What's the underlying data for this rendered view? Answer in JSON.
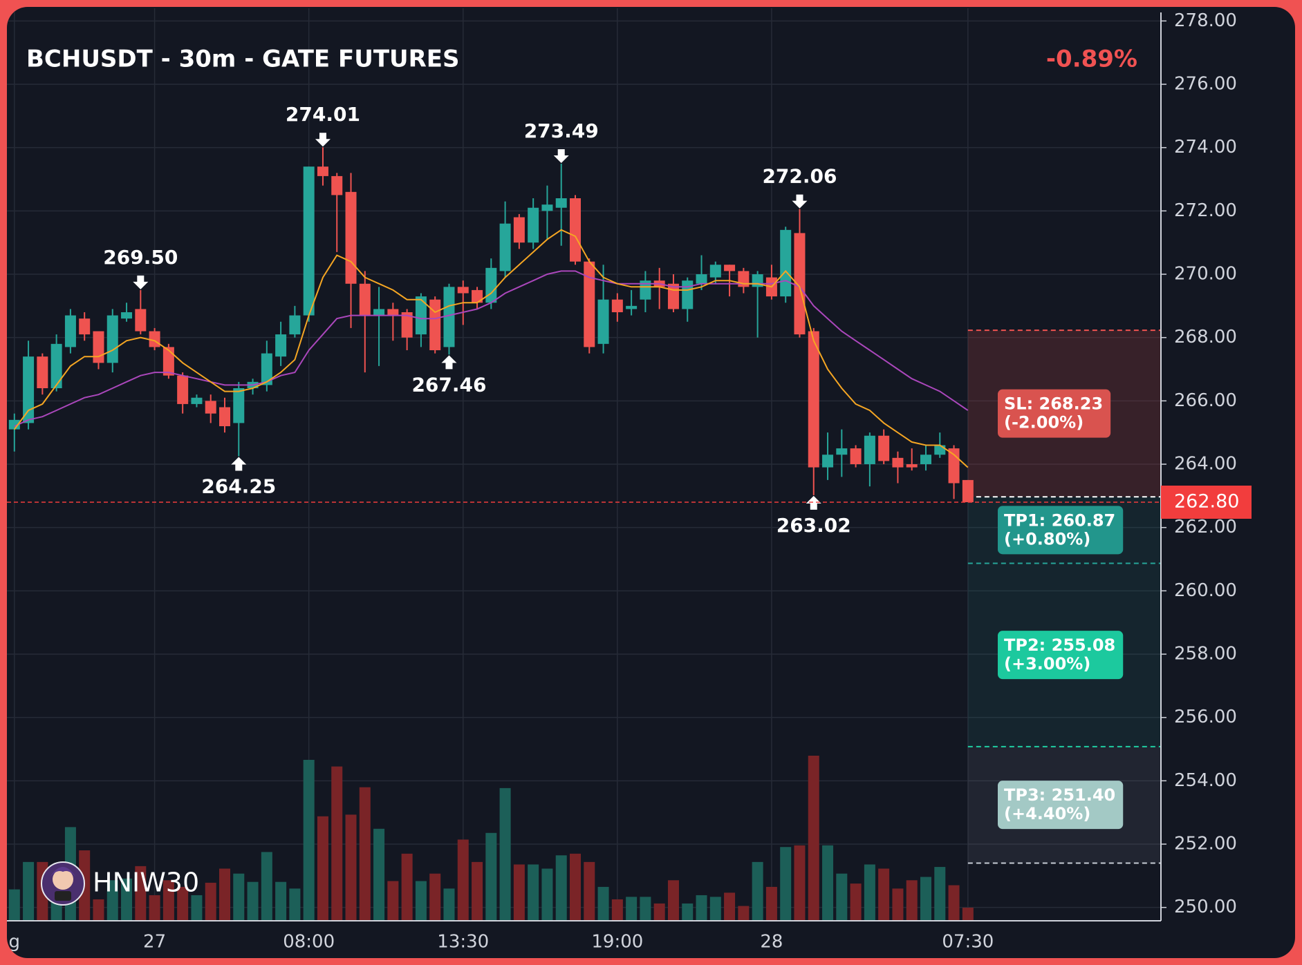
{
  "chart_data": {
    "type": "candlestick",
    "title": "BCHUSDT - 30m - GATE FUTURES",
    "change": "-0.89%",
    "watermark": "HNIW30",
    "categories": [
      "g",
      null,
      null,
      null,
      null,
      null,
      null,
      null,
      null,
      null,
      "27",
      null,
      null,
      null,
      null,
      null,
      null,
      null,
      null,
      null,
      null,
      "08:00",
      null,
      null,
      null,
      null,
      null,
      null,
      null,
      null,
      null,
      null,
      "13:30",
      null,
      null,
      null,
      null,
      null,
      null,
      null,
      null,
      null,
      null,
      "19:00",
      null,
      null,
      null,
      null,
      null,
      null,
      null,
      null,
      null,
      null,
      "28",
      null,
      null,
      null,
      null,
      null,
      null,
      null,
      null,
      null,
      null,
      null,
      null,
      null,
      "07:30"
    ],
    "open": [
      265.1,
      265.3,
      267.4,
      266.4,
      267.7,
      268.6,
      268.2,
      267.2,
      268.6,
      268.9,
      268.2,
      267.7,
      266.8,
      265.9,
      266.0,
      265.8,
      265.3,
      266.4,
      266.5,
      267.4,
      268.1,
      268.7,
      273.4,
      273.1,
      272.6,
      269.7,
      268.7,
      268.9,
      268.8,
      268.1,
      269.2,
      267.7,
      269.6,
      269.5,
      269.1,
      270.1,
      271.8,
      271.0,
      272.0,
      272.1,
      272.4,
      270.4,
      267.8,
      269.2,
      268.9,
      269.2,
      269.8,
      269.7,
      268.9,
      269.7,
      269.9,
      270.3,
      270.1,
      269.6,
      269.9,
      269.3,
      271.3,
      268.2,
      263.9,
      264.3,
      264.5,
      264.0,
      264.9,
      264.2,
      264.0,
      264.0,
      264.3,
      264.5,
      263.5
    ],
    "high": [
      265.6,
      267.9,
      267.5,
      268.1,
      268.9,
      268.8,
      268.2,
      268.9,
      269.1,
      269.5,
      268.3,
      267.8,
      266.9,
      266.2,
      266.2,
      266.1,
      266.6,
      266.7,
      267.9,
      268.5,
      269.0,
      273.4,
      274.01,
      273.2,
      273.2,
      270.1,
      269.6,
      269.1,
      268.9,
      269.4,
      269.3,
      269.7,
      269.8,
      269.6,
      270.5,
      272.3,
      271.9,
      272.4,
      272.8,
      273.49,
      272.5,
      270.5,
      270.3,
      269.4,
      269.5,
      270.1,
      270.2,
      270.0,
      269.9,
      270.6,
      270.4,
      270.3,
      270.2,
      270.1,
      270.3,
      271.5,
      272.06,
      268.3,
      265.0,
      265.1,
      264.6,
      265.0,
      265.1,
      264.4,
      264.5,
      264.6,
      265.0,
      264.6,
      263.5
    ],
    "low": [
      264.4,
      265.1,
      266.2,
      266.3,
      267.5,
      267.9,
      267.0,
      266.9,
      268.5,
      268.1,
      267.6,
      266.7,
      265.6,
      265.8,
      265.3,
      265.0,
      264.25,
      266.2,
      266.3,
      267.1,
      268.0,
      268.5,
      272.8,
      270.7,
      268.3,
      266.9,
      267.1,
      267.9,
      267.6,
      267.7,
      267.5,
      267.46,
      268.4,
      268.9,
      268.9,
      269.9,
      270.8,
      270.8,
      271.1,
      270.9,
      270.3,
      267.5,
      267.5,
      268.5,
      268.7,
      268.8,
      268.9,
      268.8,
      268.5,
      269.5,
      269.7,
      269.3,
      269.4,
      268.0,
      269.2,
      269.1,
      268.0,
      263.02,
      263.5,
      263.6,
      263.9,
      263.3,
      264.0,
      263.4,
      263.8,
      263.8,
      264.2,
      262.9,
      262.8
    ],
    "close": [
      265.4,
      267.4,
      266.4,
      267.8,
      268.7,
      268.1,
      267.2,
      268.7,
      268.8,
      268.2,
      267.7,
      266.8,
      265.9,
      266.1,
      265.6,
      265.2,
      266.4,
      266.6,
      267.5,
      268.1,
      268.7,
      273.4,
      273.1,
      272.5,
      269.7,
      268.7,
      268.9,
      268.7,
      268.0,
      269.3,
      267.6,
      269.6,
      269.4,
      269.1,
      270.2,
      271.6,
      271.0,
      272.1,
      272.2,
      272.4,
      270.4,
      267.7,
      269.2,
      268.8,
      269.0,
      269.8,
      269.6,
      268.9,
      269.8,
      270.0,
      270.3,
      270.1,
      269.6,
      270.0,
      269.3,
      271.4,
      268.1,
      263.9,
      264.3,
      264.5,
      264.0,
      264.9,
      264.1,
      263.9,
      263.9,
      264.3,
      264.6,
      263.4,
      262.8
    ],
    "volume": [
      37,
      70,
      70,
      47,
      112,
      84,
      25,
      48,
      50,
      65,
      30,
      48,
      40,
      30,
      45,
      62,
      56,
      46,
      82,
      46,
      38,
      193,
      125,
      185,
      127,
      160,
      110,
      47,
      80,
      47,
      56,
      38,
      97,
      70,
      105,
      159,
      67,
      67,
      62,
      78,
      80,
      70,
      40,
      25,
      28,
      28,
      20,
      48,
      20,
      30,
      28,
      33,
      17,
      70,
      40,
      88,
      90,
      198,
      90,
      56,
      44,
      67,
      62,
      38,
      48,
      52,
      64,
      42,
      15
    ],
    "high_labels": [
      null,
      null,
      null,
      null,
      null,
      null,
      null,
      null,
      null,
      "269.50",
      null,
      null,
      null,
      null,
      null,
      null,
      null,
      null,
      null,
      null,
      null,
      null,
      "274.01",
      null,
      null,
      null,
      null,
      null,
      null,
      null,
      null,
      null,
      null,
      null,
      null,
      null,
      null,
      null,
      null,
      "273.49",
      null,
      null,
      null,
      null,
      null,
      null,
      null,
      null,
      null,
      null,
      null,
      null,
      null,
      null,
      null,
      null,
      "272.06",
      null,
      null,
      null,
      null,
      null,
      null,
      null,
      null,
      null,
      null,
      null,
      null
    ],
    "low_labels": [
      null,
      null,
      null,
      null,
      null,
      null,
      null,
      null,
      null,
      null,
      null,
      null,
      null,
      null,
      null,
      null,
      "264.25",
      null,
      null,
      null,
      null,
      null,
      null,
      null,
      null,
      null,
      null,
      null,
      null,
      null,
      null,
      "267.46",
      null,
      null,
      null,
      null,
      null,
      null,
      null,
      null,
      null,
      null,
      null,
      null,
      null,
      null,
      null,
      null,
      null,
      null,
      null,
      null,
      null,
      null,
      null,
      null,
      null,
      "263.02",
      null,
      null,
      null,
      null,
      null,
      null,
      null,
      null,
      null,
      null,
      null
    ],
    "ma_lines": [
      {
        "color": "#ab47bc",
        "values": [
          265.2,
          265.4,
          265.5,
          265.7,
          265.9,
          266.1,
          266.2,
          266.4,
          266.6,
          266.8,
          266.9,
          266.9,
          266.8,
          266.7,
          266.6,
          266.5,
          266.5,
          266.5,
          266.6,
          266.8,
          266.9,
          267.6,
          268.1,
          268.6,
          268.7,
          268.7,
          268.7,
          268.7,
          268.7,
          268.6,
          268.6,
          268.7,
          268.8,
          268.9,
          269.1,
          269.4,
          269.6,
          269.8,
          270.0,
          270.1,
          270.1,
          269.9,
          269.8,
          269.7,
          269.7,
          269.7,
          269.7,
          269.6,
          269.6,
          269.7,
          269.7,
          269.7,
          269.7,
          269.7,
          269.7,
          269.8,
          269.6,
          269.0,
          268.6,
          268.2,
          267.9,
          267.6,
          267.3,
          267.0,
          266.7,
          266.5,
          266.3,
          266.0,
          265.7
        ]
      },
      {
        "color": "#f5a623",
        "values": [
          265.1,
          265.7,
          265.9,
          266.5,
          267.1,
          267.4,
          267.4,
          267.6,
          267.9,
          268.0,
          267.9,
          267.6,
          267.2,
          266.9,
          266.6,
          266.3,
          266.3,
          266.4,
          266.6,
          266.9,
          267.3,
          268.7,
          269.9,
          270.6,
          270.4,
          269.9,
          269.7,
          269.5,
          269.2,
          269.2,
          268.8,
          269.0,
          269.1,
          269.1,
          269.4,
          269.9,
          270.3,
          270.7,
          271.1,
          271.4,
          271.2,
          270.4,
          269.9,
          269.7,
          269.6,
          269.6,
          269.6,
          269.5,
          269.5,
          269.6,
          269.8,
          269.8,
          269.7,
          269.7,
          269.6,
          270.1,
          269.6,
          267.9,
          267.0,
          266.4,
          265.9,
          265.7,
          265.3,
          265.0,
          264.7,
          264.6,
          264.6,
          264.3,
          263.9
        ]
      }
    ],
    "up_color": "#26a69a",
    "down_color": "#ef5350",
    "volume_up_color": "#1c5f58",
    "volume_down_color": "#7a2427",
    "ylim": [
      249.6,
      278.4
    ],
    "yticks": [
      {
        "value": 250,
        "label": "250.00"
      },
      {
        "value": 252,
        "label": "252.00"
      },
      {
        "value": 254,
        "label": "254.00"
      },
      {
        "value": 256,
        "label": "256.00"
      },
      {
        "value": 258,
        "label": "258.00"
      },
      {
        "value": 260,
        "label": "260.00"
      },
      {
        "value": 262,
        "label": "262.00"
      },
      {
        "value": 264,
        "label": "264.00"
      },
      {
        "value": 266,
        "label": "266.00"
      },
      {
        "value": 268,
        "label": "268.00"
      },
      {
        "value": 270,
        "label": "270.00"
      },
      {
        "value": 272,
        "label": "272.00"
      },
      {
        "value": 274,
        "label": "274.00"
      },
      {
        "value": 276,
        "label": "276.00"
      },
      {
        "value": 278,
        "label": "278.00"
      }
    ],
    "grid": true,
    "last_price": {
      "value": 262.8,
      "label": "262.80",
      "color": "#f23d3d"
    },
    "entry": 262.97,
    "levels": [
      {
        "label": "SL: 268.23",
        "note": "(-2.00%)",
        "value": 268.23,
        "color": "#ef5350",
        "box": "#d9534f",
        "zone": "rgba(239,83,80,0.17)"
      },
      {
        "label": "TP1: 260.87",
        "note": "(+0.80%)",
        "value": 260.87,
        "color": "#26a69a",
        "box": "#22968c",
        "zone": "rgba(38,166,154,0.10)"
      },
      {
        "label": "TP2: 255.08",
        "note": "(+3.00%)",
        "value": 255.08,
        "color": "#1fcfa3",
        "box": "#1cc99e",
        "zone": "rgba(38,166,154,0.10)"
      },
      {
        "label": "TP3: 251.40",
        "note": "(+4.40%)",
        "value": 251.4,
        "color": "#c8ced6",
        "box": "#a3c9c5",
        "zone": "rgba(200,210,225,0.08)"
      }
    ]
  }
}
